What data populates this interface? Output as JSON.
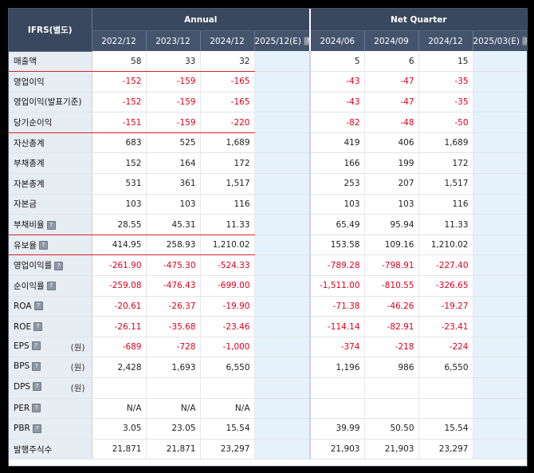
{
  "header": {
    "label": "IFRS(별도)",
    "annual": "Annual",
    "net_quarter": "Net Quarter",
    "annual_periods": [
      "2022/12",
      "2023/12",
      "2024/12",
      "2025/12(E)"
    ],
    "quarter_periods": [
      "2024/06",
      "2024/09",
      "2024/12",
      "2025/03(E)"
    ]
  },
  "rows": [
    {
      "label": "매출액",
      "values": [
        "58",
        "33",
        "32",
        "",
        "5",
        "6",
        "15",
        ""
      ]
    },
    {
      "label": "영업이익",
      "values": [
        "-152",
        "-159",
        "-165",
        "",
        "-43",
        "-47",
        "-35",
        ""
      ]
    },
    {
      "label": "영업이익(발표기준)",
      "values": [
        "-152",
        "-159",
        "-165",
        "",
        "-43",
        "-47",
        "-35",
        ""
      ]
    },
    {
      "label": "당기순이익",
      "values": [
        "-151",
        "-159",
        "-220",
        "",
        "-82",
        "-48",
        "-50",
        ""
      ]
    },
    {
      "label": "자산총계",
      "values": [
        "683",
        "525",
        "1,689",
        "",
        "419",
        "406",
        "1,689",
        ""
      ]
    },
    {
      "label": "부채총계",
      "values": [
        "152",
        "164",
        "172",
        "",
        "166",
        "199",
        "172",
        ""
      ]
    },
    {
      "label": "자본총계",
      "values": [
        "531",
        "361",
        "1,517",
        "",
        "253",
        "207",
        "1,517",
        ""
      ]
    },
    {
      "label": "자본금",
      "values": [
        "103",
        "103",
        "116",
        "",
        "103",
        "103",
        "116",
        ""
      ]
    },
    {
      "label": "부채비율",
      "values": [
        "28.55",
        "45.31",
        "11.33",
        "",
        "65.49",
        "95.94",
        "11.33",
        ""
      ]
    },
    {
      "label": "유보율",
      "values": [
        "414.95",
        "258.93",
        "1,210.02",
        "",
        "153.58",
        "109.16",
        "1,210.02",
        ""
      ]
    },
    {
      "label": "영업이익률",
      "values": [
        "-261.90",
        "-475.30",
        "-524.33",
        "",
        "-789.28",
        "-798.91",
        "-227.40",
        ""
      ]
    },
    {
      "label": "순이익률",
      "values": [
        "-259.08",
        "-476.43",
        "-699.00",
        "",
        "-1,511.00",
        "-810.55",
        "-326.65",
        ""
      ]
    },
    {
      "label": "ROA",
      "values": [
        "-20.61",
        "-26.37",
        "-19.90",
        "",
        "-71.38",
        "-46.26",
        "-19.27",
        ""
      ]
    },
    {
      "label": "ROE",
      "values": [
        "-26.11",
        "-35.68",
        "-23.46",
        "",
        "-114.14",
        "-82.91",
        "-23.41",
        ""
      ]
    },
    {
      "label": "EPS",
      "unit": "(원)",
      "values": [
        "-689",
        "-728",
        "-1,000",
        "",
        "-374",
        "-218",
        "-224",
        ""
      ]
    },
    {
      "label": "BPS",
      "unit": "(원)",
      "values": [
        "2,428",
        "1,693",
        "6,550",
        "",
        "1,196",
        "986",
        "6,550",
        ""
      ]
    },
    {
      "label": "DPS",
      "unit": "(원)",
      "values": [
        "",
        "",
        "",
        "",
        "",
        "",
        "",
        ""
      ]
    },
    {
      "label": "PER",
      "values": [
        "N/A",
        "N/A",
        "N/A",
        "",
        "",
        "",
        "",
        ""
      ]
    },
    {
      "label": "PBR",
      "values": [
        "3.05",
        "23.05",
        "15.54",
        "",
        "39.99",
        "50.50",
        "15.54",
        ""
      ]
    },
    {
      "label": "발행주식수",
      "values": [
        "21,871",
        "21,871",
        "23,297",
        "",
        "21,903",
        "21,903",
        "23,297",
        ""
      ]
    }
  ],
  "help_icon": "?",
  "colors": {
    "negative": "#e3001b",
    "header_bg": "#39485f",
    "estimate_bg": "#e5f2fb",
    "label_bg": "#e8ecf3"
  }
}
